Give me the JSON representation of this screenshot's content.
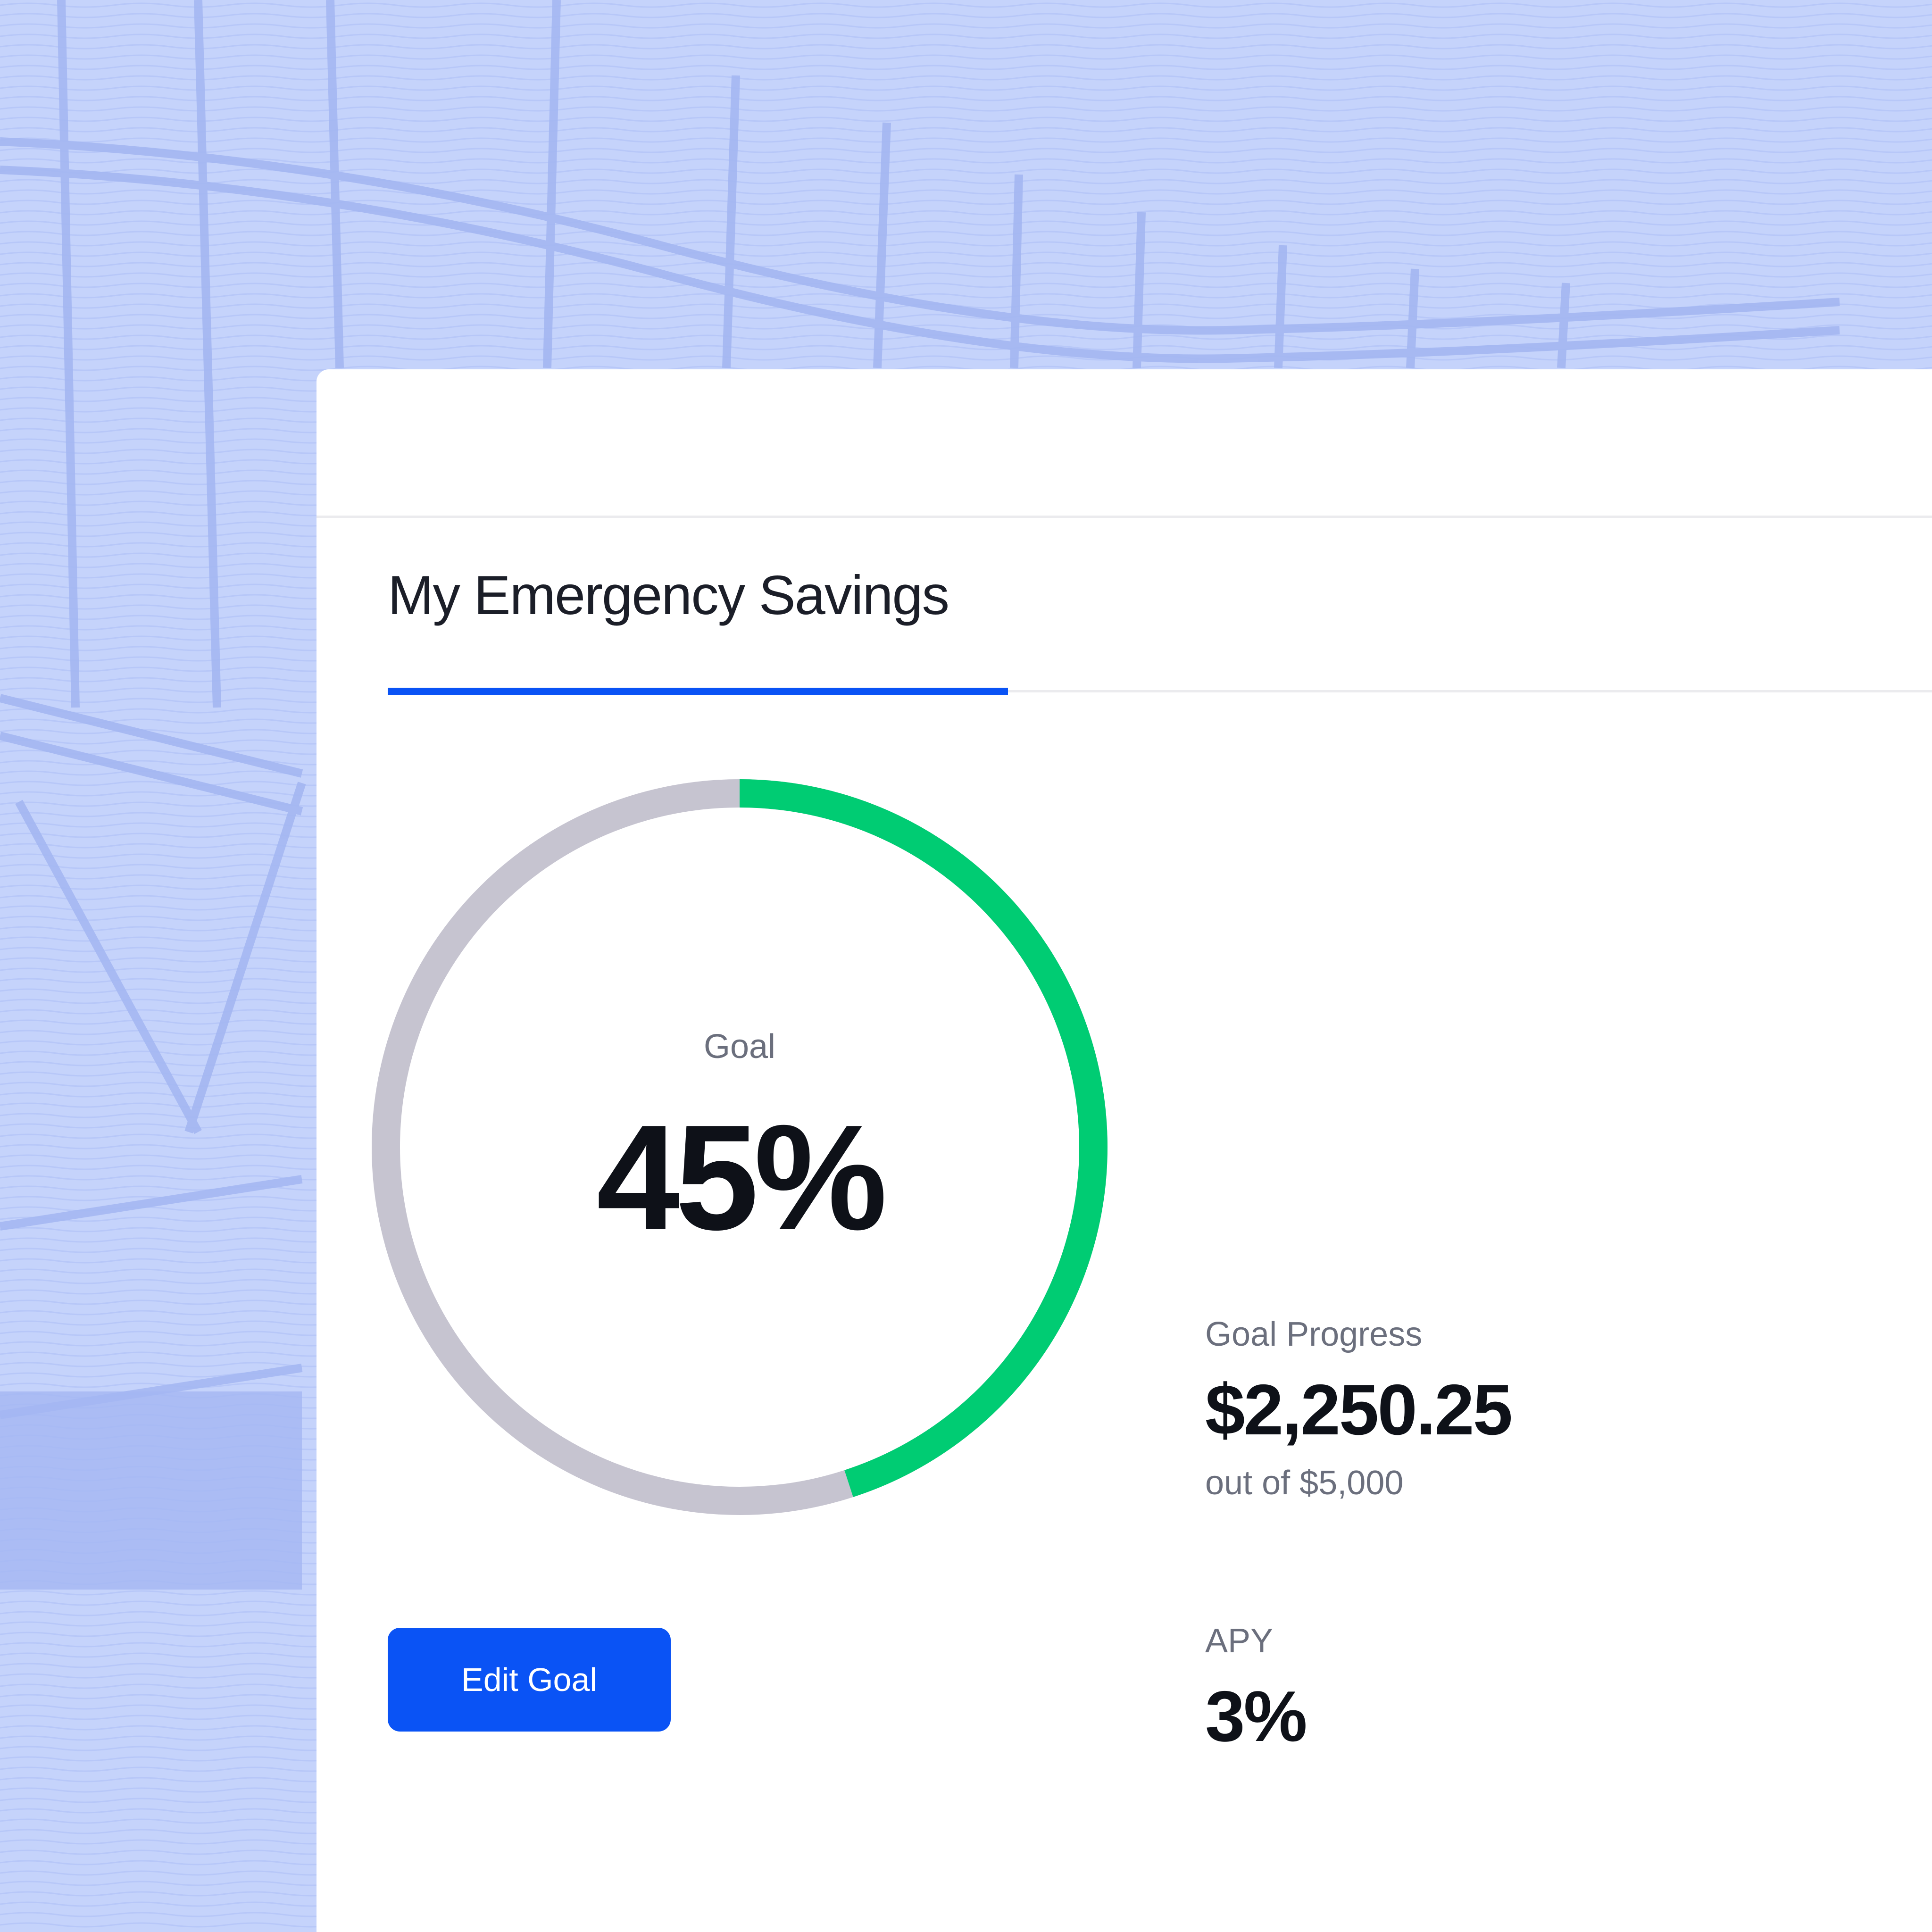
{
  "colors": {
    "background": "#c5d3fb",
    "accent": "#0a53f5",
    "progress": "#00cc73",
    "track": "#c6c4d0",
    "card": "#ffffff"
  },
  "tab": {
    "label": "My Emergency Savings"
  },
  "goal_ring": {
    "label": "Goal",
    "value_label": "45%",
    "progress_fraction": 0.45
  },
  "goal_progress": {
    "label": "Goal Progress",
    "amount": "$2,250.25",
    "subtext": "out of $5,000"
  },
  "apy": {
    "label": "APY",
    "value": "3%"
  },
  "actions": {
    "edit_goal_label": "Edit Goal"
  }
}
